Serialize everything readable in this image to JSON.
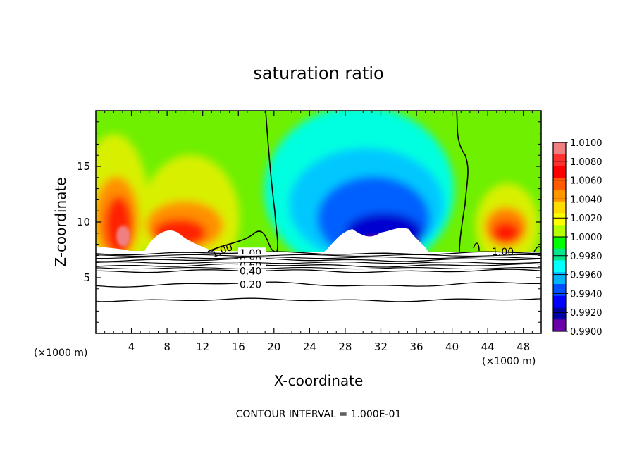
{
  "chart_data": {
    "type": "heatmap",
    "title": "saturation ratio",
    "xlabel": "X-coordinate",
    "ylabel": "Z-coordinate",
    "x_unit": "(×1000 m)",
    "xlim": [
      0,
      50
    ],
    "ylim": [
      0,
      20
    ],
    "x_ticks": [
      4,
      8,
      12,
      16,
      20,
      24,
      28,
      32,
      36,
      40,
      44,
      48
    ],
    "y_ticks": [
      5,
      10,
      15
    ],
    "colorbar": {
      "levels": [
        "1.0100",
        "1.0080",
        "1.0060",
        "1.0040",
        "1.0020",
        "1.0000",
        "0.9980",
        "0.9960",
        "0.9940",
        "0.9920",
        "0.9900"
      ],
      "colors": [
        "#f08080",
        "#ff3030",
        "#ff0000",
        "#ff5a00",
        "#ff9600",
        "#ffdc00",
        "#ffff00",
        "#b4ff00",
        "#00ff00",
        "#00e68c",
        "#00ffff",
        "#00b4ff",
        "#0050ff",
        "#0000ff",
        "#0000a0",
        "#6a00a8"
      ]
    },
    "contours": [
      {
        "label": "1.00",
        "z": 7.2
      },
      {
        "label": "0.80",
        "z": 6.6
      },
      {
        "label": "0.60",
        "z": 6.1
      },
      {
        "label": "0.40",
        "z": 5.6
      },
      {
        "label": "0.20",
        "z": 4.4
      },
      {
        "label": "",
        "z": 3.0
      }
    ],
    "contour_labels_in_field": [
      "1.00",
      "1.00"
    ],
    "footer": "CONTOUR INTERVAL = 1.000E-01"
  }
}
